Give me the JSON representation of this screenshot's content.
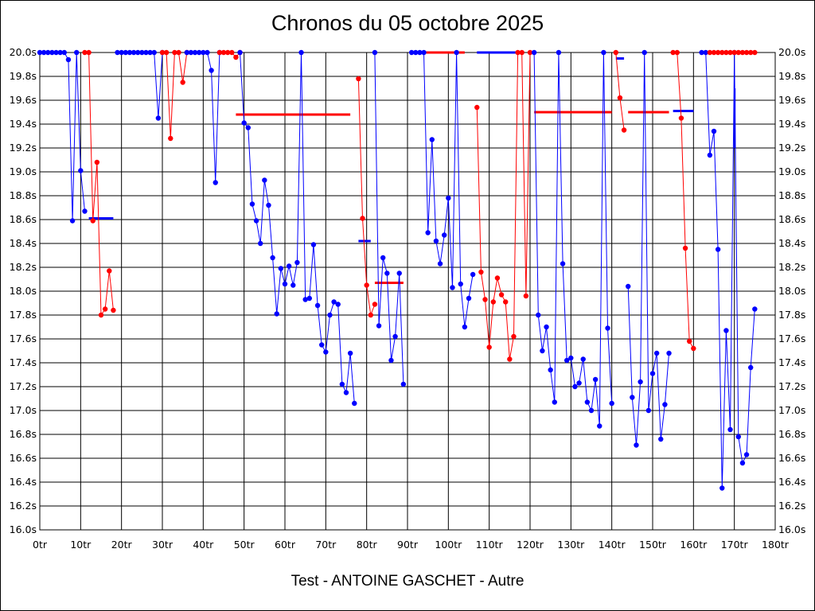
{
  "chart_data": {
    "type": "line",
    "title": "Chronos du 05 octobre 2025",
    "subtitle": "Test - ANTOINE GASCHET - Autre",
    "xlim": [
      0,
      180
    ],
    "ylim": [
      16.0,
      20.0
    ],
    "x_ticks": [
      0,
      10,
      20,
      30,
      40,
      50,
      60,
      70,
      80,
      90,
      100,
      110,
      120,
      130,
      140,
      150,
      160,
      170,
      180
    ],
    "x_tick_labels": [
      "0tr",
      "10tr",
      "20tr",
      "30tr",
      "40tr",
      "50tr",
      "60tr",
      "70tr",
      "80tr",
      "90tr",
      "100tr",
      "110tr",
      "120tr",
      "130tr",
      "140tr",
      "150tr",
      "160tr",
      "170tr",
      "180tr"
    ],
    "y_ticks": [
      16.0,
      16.2,
      16.4,
      16.6,
      16.8,
      17.0,
      17.2,
      17.4,
      17.6,
      17.8,
      18.0,
      18.2,
      18.4,
      18.6,
      18.8,
      19.0,
      19.2,
      19.4,
      19.6,
      19.8,
      20.0
    ],
    "y_tick_labels": [
      "16.0s",
      "16.2s",
      "16.4s",
      "16.6s",
      "16.8s",
      "17.0s",
      "17.2s",
      "17.4s",
      "17.6s",
      "17.8s",
      "18.0s",
      "18.2s",
      "18.4s",
      "18.6s",
      "18.8s",
      "19.0s",
      "19.2s",
      "19.4s",
      "19.6s",
      "19.8s",
      "20.0s"
    ],
    "grid": true,
    "colors": {
      "blue": "#0000ff",
      "red": "#ff0000",
      "grid": "#000000"
    },
    "series": [
      {
        "color": "blue",
        "points": [
          [
            0,
            20.0
          ],
          [
            1,
            20.0
          ],
          [
            2,
            20.0
          ],
          [
            3,
            20.0
          ],
          [
            4,
            20.0
          ],
          [
            5,
            20.0
          ],
          [
            6,
            20.0
          ],
          [
            7,
            19.94
          ],
          [
            8,
            18.59
          ],
          [
            9,
            20.0
          ],
          [
            10,
            19.01
          ],
          [
            11,
            18.67
          ]
        ]
      },
      {
        "color": "red",
        "points": [
          [
            11,
            20.0
          ],
          [
            12,
            20.0
          ],
          [
            13,
            18.59
          ],
          [
            14,
            19.08
          ],
          [
            15,
            17.8
          ],
          [
            16,
            17.85
          ],
          [
            17,
            18.17
          ],
          [
            18,
            17.84
          ]
        ]
      },
      {
        "color": "blue",
        "points": [
          [
            19,
            20.0
          ],
          [
            20,
            20.0
          ],
          [
            21,
            20.0
          ],
          [
            22,
            20.0
          ],
          [
            23,
            20.0
          ],
          [
            24,
            20.0
          ],
          [
            25,
            20.0
          ],
          [
            26,
            20.0
          ],
          [
            27,
            20.0
          ],
          [
            28,
            20.0
          ],
          [
            29,
            19.45
          ],
          [
            30,
            20.0
          ]
        ]
      },
      {
        "color": "red",
        "points": [
          [
            30,
            20.0
          ],
          [
            31,
            20.0
          ],
          [
            32,
            19.28
          ],
          [
            33,
            20.0
          ],
          [
            34,
            20.0
          ],
          [
            35,
            19.75
          ],
          [
            36,
            20.0
          ]
        ]
      },
      {
        "color": "blue",
        "points": [
          [
            36,
            20.0
          ],
          [
            37,
            20.0
          ],
          [
            38,
            20.0
          ],
          [
            39,
            20.0
          ],
          [
            40,
            20.0
          ],
          [
            41,
            20.0
          ],
          [
            42,
            19.85
          ],
          [
            43,
            18.91
          ],
          [
            44,
            20.0
          ]
        ]
      },
      {
        "color": "red",
        "points": [
          [
            44,
            20.0
          ],
          [
            45,
            20.0
          ],
          [
            46,
            20.0
          ],
          [
            47,
            20.0
          ],
          [
            48,
            19.96
          ],
          [
            49,
            20.0
          ]
        ]
      },
      {
        "color": "blue",
        "points": [
          [
            49,
            20.0
          ],
          [
            50,
            19.41
          ],
          [
            51,
            19.37
          ],
          [
            52,
            18.73
          ],
          [
            53,
            18.59
          ],
          [
            54,
            18.4
          ],
          [
            55,
            18.93
          ],
          [
            56,
            18.72
          ],
          [
            57,
            18.28
          ],
          [
            58,
            17.81
          ],
          [
            59,
            18.19
          ],
          [
            60,
            18.06
          ],
          [
            61,
            18.21
          ],
          [
            62,
            18.05
          ],
          [
            63,
            18.24
          ],
          [
            64,
            20.0
          ],
          [
            65,
            17.93
          ],
          [
            66,
            17.94
          ],
          [
            67,
            18.39
          ],
          [
            68,
            17.88
          ],
          [
            69,
            17.55
          ],
          [
            70,
            17.49
          ],
          [
            71,
            17.8
          ],
          [
            72,
            17.91
          ],
          [
            73,
            17.89
          ],
          [
            74,
            17.22
          ],
          [
            75,
            17.15
          ],
          [
            76,
            17.48
          ],
          [
            77,
            17.06
          ]
        ]
      },
      {
        "color": "red",
        "points": [
          [
            78,
            19.78
          ],
          [
            79,
            18.61
          ],
          [
            80,
            18.05
          ],
          [
            81,
            17.8
          ],
          [
            82,
            17.89
          ]
        ]
      },
      {
        "color": "blue",
        "points": [
          [
            82,
            20.0
          ],
          [
            83,
            17.71
          ],
          [
            84,
            18.28
          ],
          [
            85,
            18.15
          ],
          [
            86,
            17.42
          ],
          [
            87,
            17.62
          ],
          [
            88,
            18.15
          ],
          [
            89,
            17.22
          ]
        ]
      },
      {
        "color": "blue",
        "points": [
          [
            91,
            20.0
          ],
          [
            92,
            20.0
          ],
          [
            93,
            20.0
          ],
          [
            94,
            20.0
          ],
          [
            95,
            18.49
          ],
          [
            96,
            19.27
          ],
          [
            97,
            18.42
          ],
          [
            98,
            18.23
          ],
          [
            99,
            18.47
          ],
          [
            100,
            18.78
          ],
          [
            101,
            18.03
          ],
          [
            102,
            20.0
          ],
          [
            103,
            18.06
          ],
          [
            104,
            17.7
          ],
          [
            105,
            17.94
          ],
          [
            106,
            18.14
          ]
        ]
      },
      {
        "color": "red",
        "points": [
          [
            107,
            19.54
          ],
          [
            108,
            18.16
          ],
          [
            109,
            17.93
          ],
          [
            110,
            17.53
          ],
          [
            111,
            17.91
          ],
          [
            112,
            18.11
          ],
          [
            113,
            17.97
          ],
          [
            114,
            17.91
          ],
          [
            115,
            17.43
          ],
          [
            116,
            17.62
          ],
          [
            117,
            20.0
          ],
          [
            118,
            20.0
          ],
          [
            119,
            17.96
          ],
          [
            120,
            20.0
          ]
        ]
      },
      {
        "color": "blue",
        "points": [
          [
            121,
            20.0
          ],
          [
            122,
            17.8
          ],
          [
            123,
            17.5
          ],
          [
            124,
            17.7
          ],
          [
            125,
            17.34
          ],
          [
            126,
            17.07
          ],
          [
            127,
            20.0
          ],
          [
            128,
            18.23
          ],
          [
            129,
            17.42
          ],
          [
            130,
            17.44
          ],
          [
            131,
            17.2
          ],
          [
            132,
            17.23
          ],
          [
            133,
            17.43
          ],
          [
            134,
            17.07
          ],
          [
            135,
            17.0
          ],
          [
            136,
            17.26
          ],
          [
            137,
            16.87
          ],
          [
            138,
            20.0
          ],
          [
            139,
            17.69
          ],
          [
            140,
            17.06
          ]
        ]
      },
      {
        "color": "red",
        "points": [
          [
            141,
            20.0
          ],
          [
            142,
            19.62
          ],
          [
            143,
            19.35
          ]
        ]
      },
      {
        "color": "blue",
        "points": [
          [
            144,
            18.04
          ],
          [
            145,
            17.11
          ],
          [
            146,
            16.71
          ],
          [
            147,
            17.24
          ],
          [
            148,
            20.0
          ],
          [
            149,
            17.0
          ],
          [
            150,
            17.31
          ],
          [
            151,
            17.48
          ],
          [
            152,
            16.76
          ],
          [
            153,
            17.05
          ],
          [
            154,
            17.48
          ]
        ]
      },
      {
        "color": "red",
        "points": [
          [
            155,
            20.0
          ],
          [
            156,
            20.0
          ],
          [
            157,
            19.45
          ],
          [
            158,
            18.36
          ],
          [
            159,
            17.58
          ],
          [
            160,
            17.52
          ]
        ]
      },
      {
        "color": "blue",
        "points": [
          [
            162,
            20.0
          ],
          [
            163,
            20.0
          ],
          [
            164,
            19.14
          ],
          [
            165,
            19.34
          ],
          [
            166,
            18.35
          ],
          [
            167,
            16.35
          ],
          [
            168,
            17.67
          ],
          [
            169,
            16.84
          ],
          [
            170,
            20.0
          ],
          [
            171,
            16.78
          ],
          [
            172,
            16.56
          ],
          [
            173,
            16.63
          ],
          [
            174,
            17.36
          ],
          [
            175,
            17.85
          ]
        ]
      },
      {
        "color": "red",
        "points": [
          [
            164,
            20.0
          ],
          [
            165,
            20.0
          ],
          [
            166,
            20.0
          ],
          [
            167,
            20.0
          ],
          [
            168,
            20.0
          ],
          [
            169,
            20.0
          ],
          [
            170,
            20.0
          ],
          [
            171,
            20.0
          ],
          [
            172,
            20.0
          ],
          [
            173,
            20.0
          ],
          [
            174,
            20.0
          ],
          [
            175,
            20.0
          ]
        ]
      }
    ],
    "average_lines": [
      {
        "color": "blue",
        "x_start": 12,
        "x_end": 18,
        "y": 18.61
      },
      {
        "color": "red",
        "x_start": 48,
        "x_end": 76,
        "y": 19.48
      },
      {
        "color": "blue",
        "x_start": 78,
        "x_end": 81,
        "y": 18.42
      },
      {
        "color": "red",
        "x_start": 82,
        "x_end": 89,
        "y": 18.07
      },
      {
        "color": "red",
        "x_start": 92,
        "x_end": 104,
        "y": 20.0
      },
      {
        "color": "blue",
        "x_start": 107,
        "x_end": 117,
        "y": 20.0
      },
      {
        "color": "red",
        "x_start": 121,
        "x_end": 140,
        "y": 19.5
      },
      {
        "color": "blue",
        "x_start": 141,
        "x_end": 143,
        "y": 19.95
      },
      {
        "color": "red",
        "x_start": 144,
        "x_end": 154,
        "y": 19.5
      },
      {
        "color": "blue",
        "x_start": 155,
        "x_end": 160,
        "y": 19.51
      },
      {
        "color": "red",
        "x_start": 164,
        "x_end": 175,
        "y": 20.0
      }
    ],
    "vertical_marks": [
      {
        "color": "blue",
        "x": 170.1,
        "y_from": 19.2,
        "y_to": 19.7
      }
    ]
  }
}
